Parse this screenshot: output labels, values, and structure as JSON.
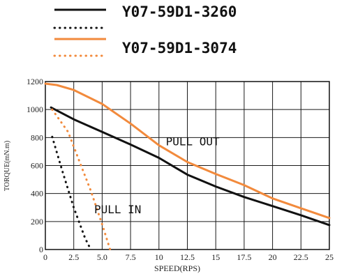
{
  "chart_data": {
    "type": "line",
    "title": "",
    "xlabel": "SPEED(RPS)",
    "ylabel": "TORQUE(mN.m)",
    "xlim": [
      0,
      25
    ],
    "ylim": [
      0,
      1200
    ],
    "x_ticks": [
      "0",
      "2.5",
      "5.0",
      "7.5",
      "10",
      "12.5",
      "15",
      "17.5",
      "20",
      "22.5",
      "25"
    ],
    "y_ticks": [
      "0",
      "200",
      "400",
      "600",
      "800",
      "1000",
      "1200"
    ],
    "grid": true,
    "legend_position": "top",
    "legend": [
      {
        "label": "Y07-59D1-3260",
        "style": "solid",
        "color": "#111111"
      },
      {
        "label": "",
        "style": "dotted",
        "color": "#111111"
      },
      {
        "label": "Y07-59D1-3074",
        "style": "solid",
        "color": "#f28a3c"
      },
      {
        "label": "",
        "style": "dotted",
        "color": "#f28a3c"
      }
    ],
    "annotations": [
      {
        "text": "PULL OUT",
        "x": 10.6,
        "y": 745
      },
      {
        "text": "PULL IN",
        "x": 4.3,
        "y": 260
      }
    ],
    "series": [
      {
        "name": "Y07-59D1-3260",
        "color": "#111111",
        "style": "solid",
        "x": [
          0.5,
          2.5,
          5,
          7.5,
          10,
          12.5,
          15,
          17.5,
          20,
          22.5,
          25
        ],
        "y": [
          1015,
          930,
          840,
          750,
          655,
          535,
          450,
          375,
          310,
          245,
          175
        ]
      },
      {
        "name": "Y07-59D1-3260 pull-in",
        "color": "#111111",
        "style": "dotted",
        "x": [
          0.6,
          1.5,
          2.5,
          3.5,
          4.0
        ],
        "y": [
          805,
          560,
          300,
          80,
          0
        ]
      },
      {
        "name": "Y07-59D1-3074",
        "color": "#f28a3c",
        "style": "solid",
        "x": [
          0,
          1,
          2.5,
          5,
          7.5,
          10,
          12.5,
          15,
          17.5,
          20,
          22.5,
          25
        ],
        "y": [
          1185,
          1175,
          1140,
          1040,
          900,
          745,
          625,
          540,
          460,
          365,
          295,
          225
        ]
      },
      {
        "name": "Y07-59D1-3074 pull-in",
        "color": "#f28a3c",
        "style": "dotted",
        "x": [
          0.6,
          2,
          3,
          4,
          5,
          5.7
        ],
        "y": [
          1000,
          840,
          630,
          420,
          180,
          0
        ]
      }
    ]
  }
}
